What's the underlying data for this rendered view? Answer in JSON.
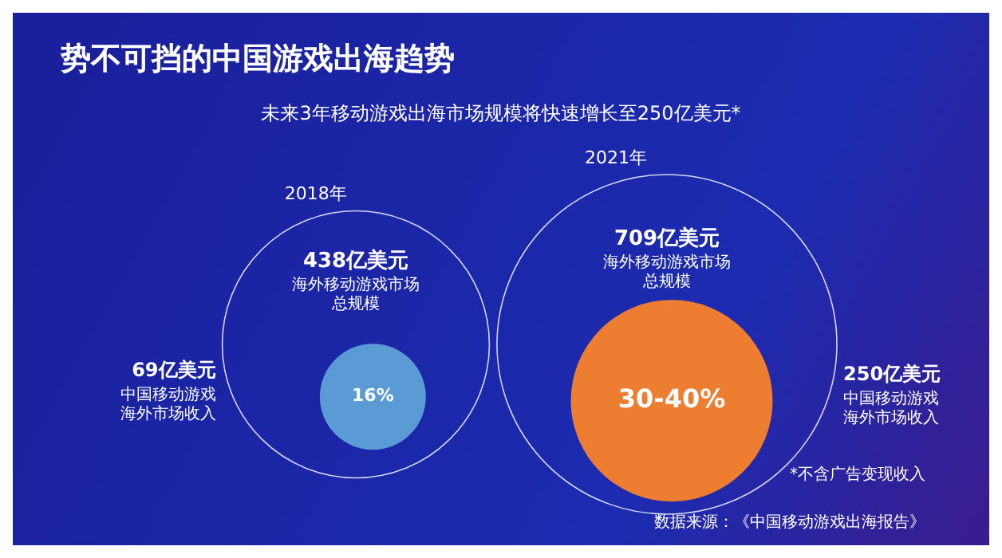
{
  "chart_data": {
    "type": "other",
    "title": "势不可挡的中国游戏出海趋势",
    "subtitle": "未来3年移动游戏出海市场规模将快速增长至250亿美元*",
    "categories": [
      "2018年",
      "2021年"
    ],
    "series": [
      {
        "name": "海外移动游戏市场总规模",
        "color": "#ffffff",
        "values": [
          438,
          709
        ],
        "value_labels": [
          "438亿美元",
          "709亿美元"
        ]
      },
      {
        "name": "中国移动游戏海外市场收入",
        "colors": [
          "#5b9bd5",
          "#ed7d31"
        ],
        "values": [
          69,
          250
        ],
        "value_labels": [
          "69亿美元",
          "250亿美元"
        ]
      }
    ],
    "annotations": [
      {
        "text": "16%",
        "x": "2018年"
      },
      {
        "text": "30-40%",
        "x": "2021年"
      },
      "*不含广告变现收入",
      "数据来源：《中国移动游戏出海报告》"
    ]
  }
}
